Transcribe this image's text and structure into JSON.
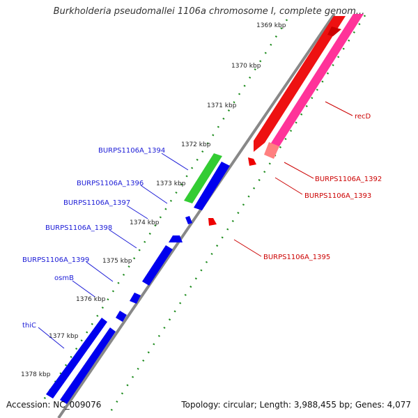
{
  "title": "Burkholderia pseudomallei 1106a chromosome I, complete genom...",
  "footer": {
    "accession": "Accession: NC_009076",
    "summary": "Topology: circular; Length: 3,988,455 bp; Genes: 4,077"
  },
  "ticks": [
    "1369 kbp",
    "1370 kbp",
    "1371 kbp",
    "1372 kbp",
    "1373 kbp",
    "1374 kbp",
    "1375 kbp",
    "1376 kbp",
    "1377 kbp",
    "1378 kbp"
  ],
  "genes_left": [
    {
      "name": "BURPS1106A_1394",
      "color": "#1a1ad6"
    },
    {
      "name": "BURPS1106A_1396",
      "color": "#1a1ad6"
    },
    {
      "name": "BURPS1106A_1397",
      "color": "#1a1ad6"
    },
    {
      "name": "BURPS1106A_1398",
      "color": "#1a1ad6"
    },
    {
      "name": "BURPS1106A_1399",
      "color": "#1a1ad6"
    },
    {
      "name": "osmB",
      "color": "#1a1ad6"
    },
    {
      "name": "thiC",
      "color": "#1a1ad6"
    }
  ],
  "genes_right": [
    {
      "name": "recD",
      "color": "#cc0000"
    },
    {
      "name": "BURPS1106A_1392",
      "color": "#cc0000"
    },
    {
      "name": "BURPS1106A_1393",
      "color": "#cc0000"
    },
    {
      "name": "BURPS1106A_1395",
      "color": "#cc0000"
    }
  ],
  "colors": {
    "backbone": "#888888",
    "tick_dots": "#1e8c1e",
    "forward_cds": "#0000ee",
    "reverse_cds": "#ee0000",
    "rna_green": "#33cc33",
    "pink_track": "#ff3399",
    "light_red": "#ff8080"
  }
}
